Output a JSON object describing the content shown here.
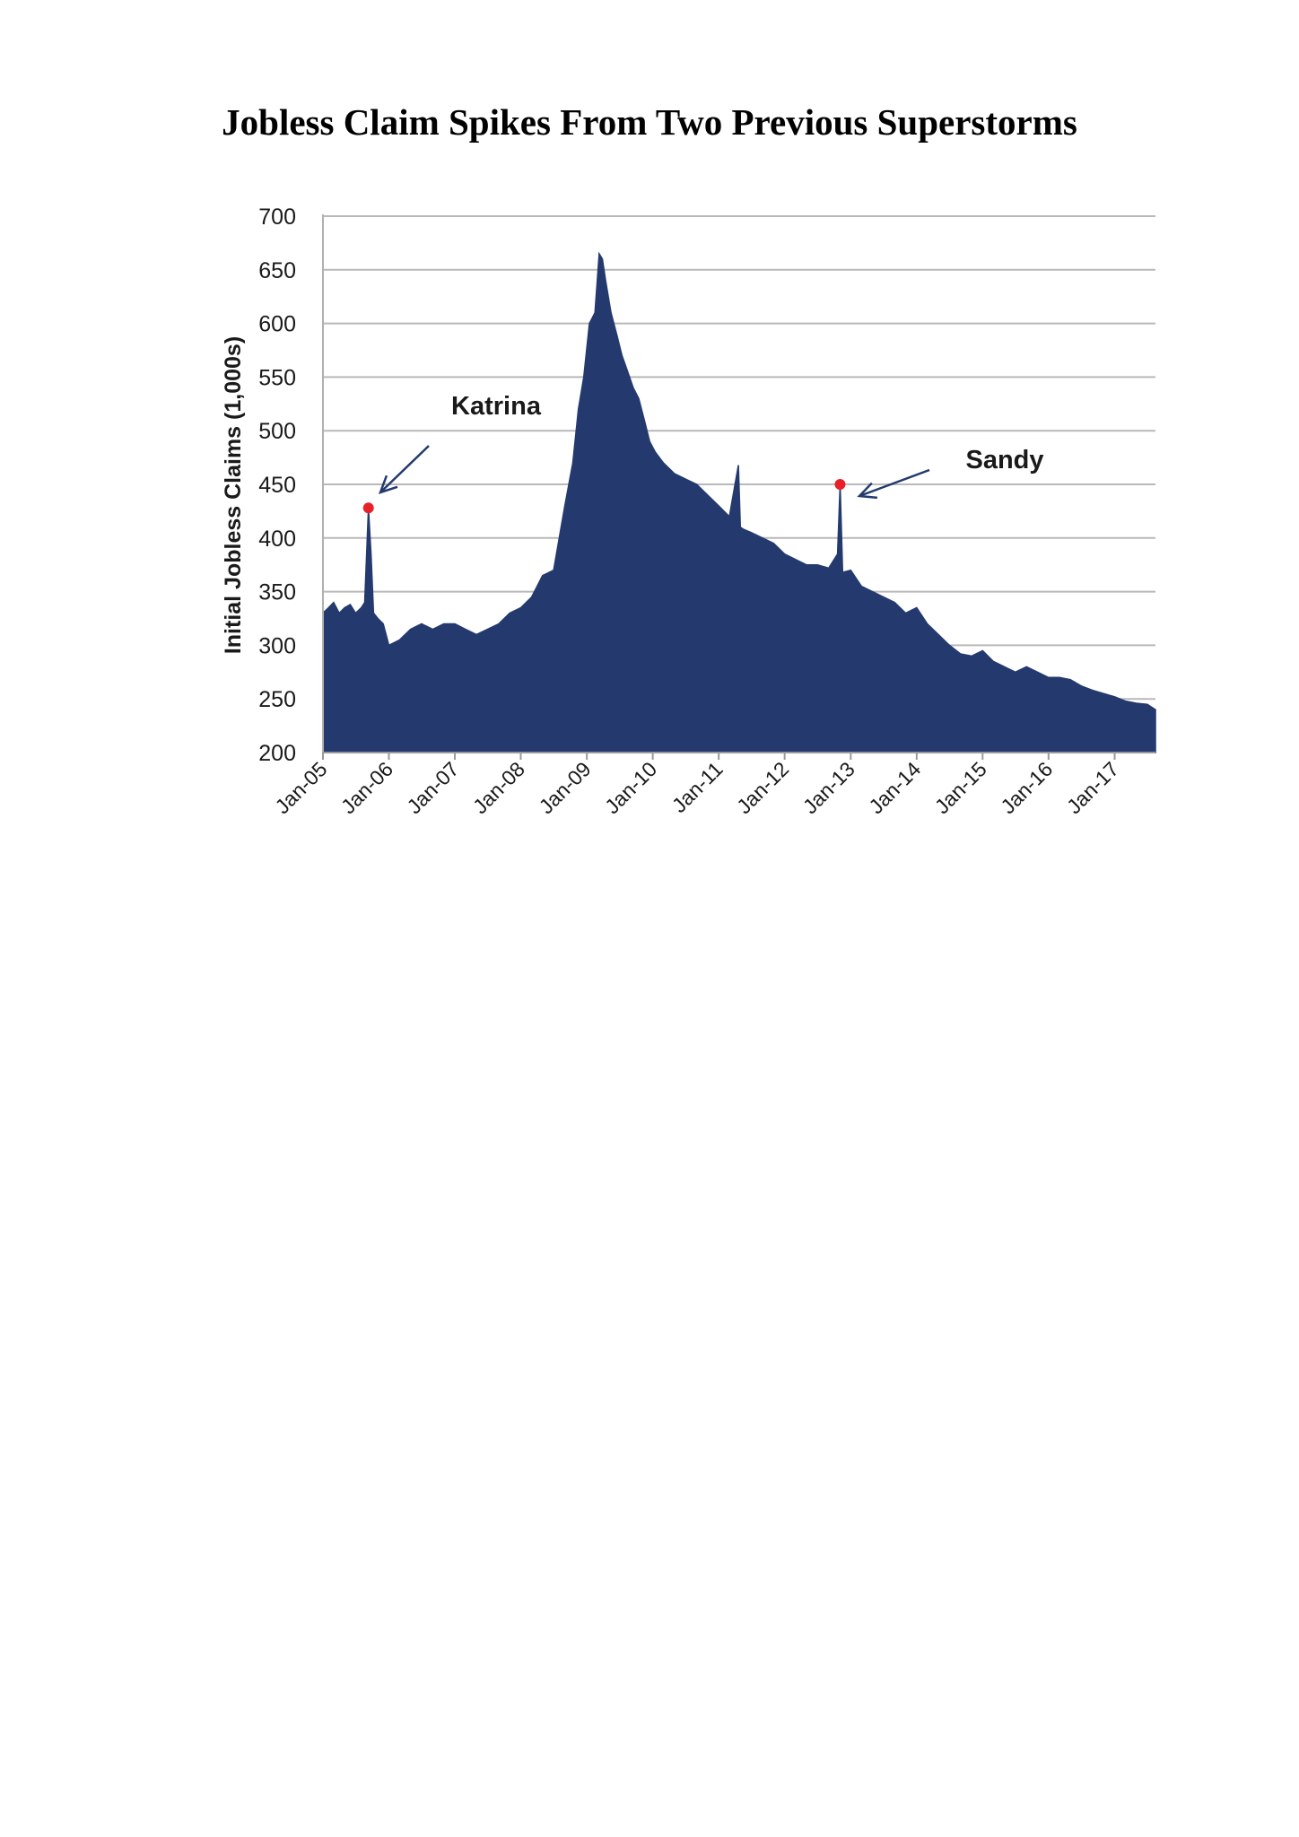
{
  "page": {
    "title": "Jobless Claim Spikes From Two Previous Superstorms"
  },
  "chart_data": {
    "type": "area",
    "title": "Jobless Claim Spikes From Two Previous Superstorms",
    "xlabel": "",
    "ylabel": "Initial Jobless Claims (1,000s)",
    "ylim": [
      200,
      700
    ],
    "yticks": [
      200,
      250,
      300,
      350,
      400,
      450,
      500,
      550,
      600,
      650,
      700
    ],
    "xlim": [
      "2005-01-01",
      "2017-08-15"
    ],
    "xticks": [
      {
        "date": "2005-01-01",
        "label": "Jan-05"
      },
      {
        "date": "2006-01-01",
        "label": "Jan-06"
      },
      {
        "date": "2007-01-01",
        "label": "Jan-07"
      },
      {
        "date": "2008-01-01",
        "label": "Jan-08"
      },
      {
        "date": "2009-01-01",
        "label": "Jan-09"
      },
      {
        "date": "2010-01-01",
        "label": "Jan-10"
      },
      {
        "date": "2011-01-01",
        "label": "Jan-11"
      },
      {
        "date": "2012-01-01",
        "label": "Jan-12"
      },
      {
        "date": "2013-01-01",
        "label": "Jan-13"
      },
      {
        "date": "2014-01-01",
        "label": "Jan-14"
      },
      {
        "date": "2015-01-01",
        "label": "Jan-15"
      },
      {
        "date": "2016-01-01",
        "label": "Jan-16"
      },
      {
        "date": "2017-01-01",
        "label": "Jan-17"
      }
    ],
    "grid": true,
    "fill_color": "#243a6e",
    "highlight_color": "#e8202a",
    "grid_color": "#b9b9b9",
    "series": [
      {
        "x": [
          "2005-01-01",
          "2005-02-01",
          "2005-03-01",
          "2005-04-01",
          "2005-05-01",
          "2005-06-01",
          "2005-07-01",
          "2005-08-01",
          "2005-08-20",
          "2005-09-10",
          "2005-09-24",
          "2005-10-08",
          "2005-11-01",
          "2005-12-01",
          "2006-01-01",
          "2006-03-01",
          "2006-05-01",
          "2006-07-01",
          "2006-09-01",
          "2006-11-01",
          "2007-01-01",
          "2007-03-01",
          "2007-05-01",
          "2007-07-01",
          "2007-09-01",
          "2007-11-01",
          "2008-01-01",
          "2008-03-01",
          "2008-05-01",
          "2008-07-01",
          "2008-09-01",
          "2008-10-15",
          "2008-11-15",
          "2008-12-15",
          "2009-01-15",
          "2009-02-15",
          "2009-03-10",
          "2009-03-28",
          "2009-04-15",
          "2009-05-15",
          "2009-06-15",
          "2009-07-15",
          "2009-08-15",
          "2009-09-15",
          "2009-10-15",
          "2009-11-15",
          "2009-12-15",
          "2010-01-15",
          "2010-03-01",
          "2010-05-01",
          "2010-07-01",
          "2010-09-01",
          "2010-11-01",
          "2011-01-01",
          "2011-03-01",
          "2011-04-20",
          "2011-05-01",
          "2011-05-20",
          "2011-07-01",
          "2011-09-01",
          "2011-11-01",
          "2012-01-01",
          "2012-03-01",
          "2012-05-01",
          "2012-07-01",
          "2012-09-01",
          "2012-10-20",
          "2012-11-03",
          "2012-11-17",
          "2013-01-01",
          "2013-03-01",
          "2013-05-01",
          "2013-07-01",
          "2013-09-01",
          "2013-11-01",
          "2014-01-01",
          "2014-03-01",
          "2014-05-01",
          "2014-07-01",
          "2014-09-01",
          "2014-11-01",
          "2015-01-01",
          "2015-03-01",
          "2015-05-01",
          "2015-07-01",
          "2015-09-01",
          "2015-11-01",
          "2016-01-01",
          "2016-03-01",
          "2016-05-01",
          "2016-07-01",
          "2016-09-01",
          "2016-11-01",
          "2017-01-01",
          "2017-03-01",
          "2017-05-01",
          "2017-07-01",
          "2017-08-15"
        ],
        "y": [
          330,
          335,
          340,
          330,
          335,
          338,
          330,
          335,
          340,
          428,
          385,
          330,
          325,
          320,
          300,
          305,
          315,
          320,
          315,
          320,
          320,
          315,
          310,
          315,
          320,
          330,
          335,
          345,
          365,
          370,
          430,
          470,
          520,
          550,
          600,
          610,
          665,
          660,
          640,
          610,
          590,
          570,
          555,
          540,
          530,
          510,
          490,
          480,
          470,
          460,
          455,
          450,
          440,
          430,
          420,
          468,
          410,
          408,
          405,
          400,
          395,
          385,
          380,
          375,
          375,
          372,
          385,
          450,
          368,
          370,
          355,
          350,
          345,
          340,
          330,
          335,
          320,
          310,
          300,
          292,
          290,
          295,
          285,
          280,
          275,
          280,
          275,
          270,
          270,
          268,
          262,
          258,
          255,
          252,
          248,
          246,
          245,
          240
        ]
      }
    ],
    "annotations": [
      {
        "text": "Katrina",
        "x": "2005-09-10",
        "y": 428
      },
      {
        "text": "Sandy",
        "x": "2012-11-03",
        "y": 450
      }
    ]
  }
}
